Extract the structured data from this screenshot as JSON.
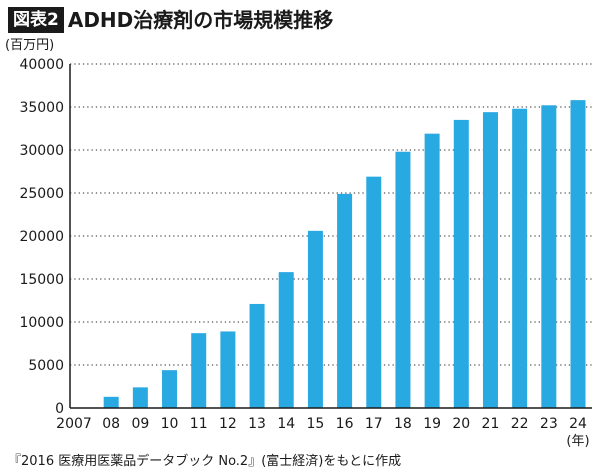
{
  "header": {
    "badge": "図表2",
    "title": "ADHD治療剤の市場規模推移"
  },
  "colors": {
    "bar": "#29a9e1",
    "axis": "#1a1a1a",
    "grid": "#555555"
  },
  "chart_data": {
    "type": "bar",
    "title": "ADHD治療剤の市場規模推移",
    "ylabel": "(百万円)",
    "xlabel": "(年)",
    "ylim": [
      0,
      40000
    ],
    "yticks": [
      0,
      5000,
      10000,
      15000,
      20000,
      25000,
      30000,
      35000,
      40000
    ],
    "grid": true,
    "categories": [
      "2007",
      "08",
      "09",
      "10",
      "11",
      "12",
      "13",
      "14",
      "15",
      "16",
      "17",
      "18",
      "19",
      "20",
      "21",
      "22",
      "23",
      "24"
    ],
    "values": [
      0,
      1300,
      2400,
      4400,
      8700,
      8900,
      12100,
      15800,
      20600,
      24900,
      26900,
      29800,
      31900,
      33500,
      34400,
      34800,
      35200,
      35800
    ]
  },
  "footer": {
    "source": "『2016 医療用医薬品データブック No.2』(富士経済)をもとに作成"
  }
}
